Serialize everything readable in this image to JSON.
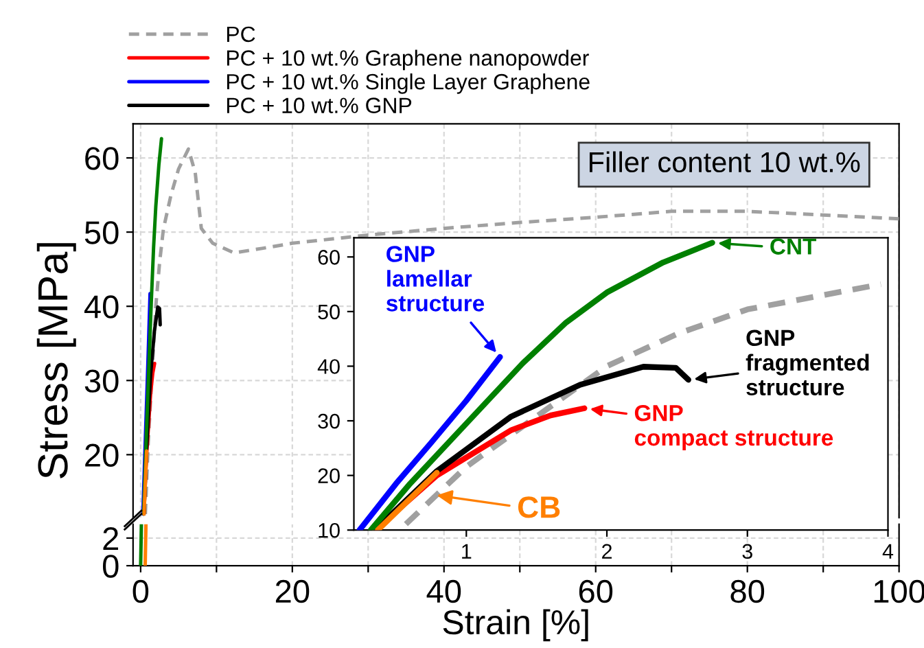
{
  "chart_data": [
    {
      "type": "line",
      "ylabel": "Stress [MPa]",
      "xlim": [
        -1,
        100
      ],
      "ylim": [
        11.5,
        64.6
      ],
      "xticks": [
        0,
        {
          "value": 10,
          "label": null
        },
        20,
        {
          "value": 30,
          "label": null
        },
        40,
        {
          "value": 50,
          "label": null
        },
        60,
        {
          "value": 70,
          "label": null
        },
        80,
        {
          "value": 90,
          "label": null
        },
        100
      ],
      "yticks": [
        20,
        30,
        40,
        50,
        60
      ],
      "grid": true,
      "legend": "top",
      "tick_labels": "y",
      "annotations": [
        "Filler content 10 wt.%"
      ],
      "series": [
        {
          "name": "PC",
          "color": "#a0a0a0",
          "line_style": "dashed",
          "x": [
            0.62,
            1.0,
            1.5,
            2,
            2.5,
            3,
            4,
            5,
            6.3,
            7.2,
            8,
            9.5,
            12.3,
            16,
            20,
            30,
            40,
            50,
            60,
            70,
            80,
            90,
            100
          ],
          "values": [
            12,
            21.6,
            30.8,
            40,
            45.9,
            50.4,
            55,
            58.5,
            61.2,
            58,
            50.5,
            48.5,
            47.2,
            47.8,
            48.5,
            49.6,
            50.5,
            51.3,
            52,
            52.8,
            52.8,
            52.3,
            51.8
          ]
        },
        {
          "name": "PC + 10 wt.% Graphene nanopowder",
          "color": "#ff0000",
          "x": [
            0.44,
            0.79,
            1.32,
            1.6,
            1.84
          ],
          "values": [
            12,
            20,
            28.3,
            31,
            32.3
          ]
        },
        {
          "name": "PC + 10 wt.% Single Layer Graphene",
          "color": "#0000ff",
          "x": [
            0.3,
            0.5,
            0.75,
            1.0,
            1.24
          ],
          "values": [
            12,
            18.5,
            26,
            33.7,
            41.7
          ]
        },
        {
          "name": "PC + 10 wt.% GNP",
          "color": "#000000",
          "x": [
            0.44,
            0.79,
            1.32,
            1.81,
            2.26,
            2.49,
            2.58
          ],
          "values": [
            12,
            20.8,
            30.8,
            36.6,
            39.9,
            39.7,
            37.5
          ]
        },
        {
          "color": "#008000",
          "x": [
            0.39,
            0.6,
            1.0,
            1.4,
            1.71,
            2.0,
            2.4,
            2.75
          ],
          "values": [
            12,
            18.5,
            29.5,
            40.5,
            48,
            53.5,
            59,
            62.6
          ]
        },
        {
          "color": "#ff7f00",
          "x": [
            0.45,
            0.79
          ],
          "values": [
            12,
            20.5
          ]
        }
      ]
    },
    {
      "type": "line",
      "xlabel": "Strain [%]",
      "xlim": [
        -1,
        100
      ],
      "ylim": [
        0,
        3
      ],
      "xticks": [
        0,
        {
          "value": 10,
          "label": null
        },
        20,
        {
          "value": 30,
          "label": null
        },
        40,
        {
          "value": 50,
          "label": null
        },
        60,
        {
          "value": 70,
          "label": null
        },
        80,
        {
          "value": 90,
          "label": null
        },
        100
      ],
      "yticks": [
        0,
        2
      ],
      "grid": true,
      "series": [
        {
          "color": "#008000",
          "x": [
            0,
            0.1
          ],
          "values": [
            0,
            3
          ]
        },
        {
          "color": "#ff7f00",
          "x": [
            0.6,
            0.7
          ],
          "values": [
            0,
            3
          ]
        }
      ]
    },
    {
      "type": "line",
      "xlim": [
        0.2,
        4
      ],
      "ylim": [
        10,
        63.5
      ],
      "xticks": [
        1,
        2,
        3,
        4
      ],
      "yticks": [
        10,
        20,
        30,
        40,
        50,
        60
      ],
      "grid": false,
      "annotations": [
        {
          "text": "GNP\nlamellar\nstructure",
          "x": 1.24,
          "y": 41.7
        },
        {
          "text": "CNT",
          "x": 2.75,
          "y": 62.6
        },
        {
          "text": "GNP\nfragmented\nstructure",
          "x": 2.58,
          "y": 37.5
        },
        {
          "text": "GNP\ncompact structure",
          "x": 1.84,
          "y": 32.3
        },
        {
          "text": "CB",
          "x": 0.75,
          "y": 16.5
        }
      ],
      "series": [
        {
          "color": "#a0a0a0",
          "line_style": "dashed",
          "x": [
            0.57,
            1.0,
            1.5,
            2,
            2.5,
            3,
            3.95
          ],
          "values": [
            11.1,
            21.6,
            30.8,
            40,
            45.9,
            50.4,
            55
          ]
        },
        {
          "color": "#ff0000",
          "x": [
            0.35,
            0.79,
            1.32,
            1.6,
            1.84
          ],
          "values": [
            10,
            20,
            28.3,
            31,
            32.3
          ]
        },
        {
          "color": "#0000ff",
          "x": [
            0.24,
            0.5,
            0.75,
            1.0,
            1.24
          ],
          "values": [
            10,
            18.5,
            26,
            33.7,
            41.7
          ]
        },
        {
          "color": "#000000",
          "x": [
            0.35,
            0.79,
            1.32,
            1.81,
            2.26,
            2.49,
            2.58
          ],
          "values": [
            10,
            20.8,
            30.8,
            36.6,
            39.9,
            39.7,
            37.5
          ]
        },
        {
          "color": "#008000",
          "x": [
            0.32,
            0.6,
            1.0,
            1.4,
            1.71,
            2.0,
            2.4,
            2.75
          ],
          "values": [
            10,
            18.5,
            29.5,
            40.5,
            48,
            53.5,
            59,
            62.6
          ]
        },
        {
          "color": "#ff7f00",
          "x": [
            0.37,
            0.79
          ],
          "values": [
            10,
            20.5
          ]
        }
      ]
    }
  ]
}
